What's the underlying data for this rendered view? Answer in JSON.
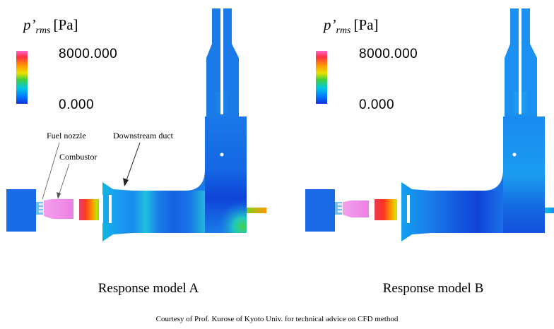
{
  "legend": {
    "symbol": "p’",
    "subscript": "rms",
    "unit": "[Pa]",
    "max_label": "8000.000",
    "min_label": "0.000",
    "colors": [
      "#ff66cc",
      "#ff2020",
      "#ffa000",
      "#f0e000",
      "#40d040",
      "#00c8e0",
      "#0080ff",
      "#1030e0"
    ]
  },
  "annotations": {
    "fuel_nozzle": "Fuel nozzle",
    "combustor": "Combustor",
    "downstream_duct": "Downstream duct"
  },
  "captions": {
    "model_a": "Response model A",
    "model_b": "Response model B"
  },
  "credit": "Courtesy of Prof. Kurose of Kyoto Univ.  for technical advice on CFD method",
  "colors": {
    "field_blue": "#1a7be8",
    "deep_blue": "#0e3bd8",
    "combustor_pink": "#f08ee8"
  }
}
